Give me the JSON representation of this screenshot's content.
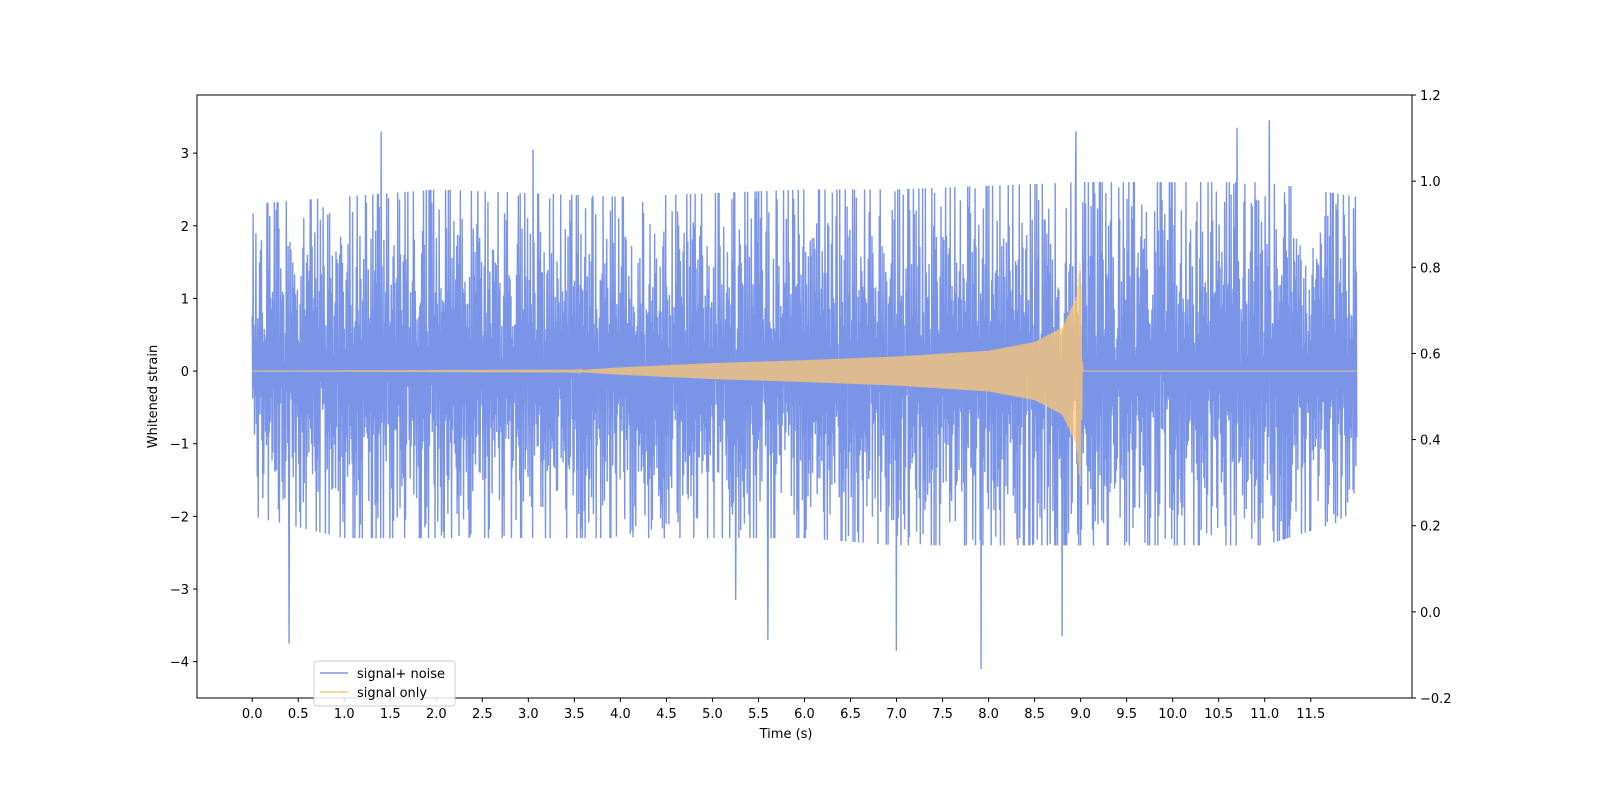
{
  "chart_data": {
    "type": "line",
    "title": "",
    "xlabel": "Time (s)",
    "ylabel": "Whitened strain",
    "xlim": [
      -0.6,
      12.6
    ],
    "ylim": [
      -4.5,
      3.8
    ],
    "y2lim": [
      -0.2,
      1.2
    ],
    "x_ticks": [
      "0.0",
      "0.5",
      "1.0",
      "1.5",
      "2.0",
      "2.5",
      "3.0",
      "3.5",
      "4.0",
      "4.5",
      "5.0",
      "5.5",
      "6.0",
      "6.5",
      "7.0",
      "7.5",
      "8.0",
      "8.5",
      "9.0",
      "9.5",
      "10.0",
      "10.5",
      "11.0",
      "11.5"
    ],
    "y_ticks": [
      "3",
      "2",
      "1",
      "0",
      "−1",
      "−2",
      "−3",
      "−4"
    ],
    "y2_ticks": [
      "1.2",
      "1.0",
      "0.8",
      "0.6",
      "0.4",
      "0.2",
      "0.0",
      "−0.2"
    ],
    "grid": false,
    "legend_position": "lower-left",
    "series": [
      {
        "name": "signal+ noise",
        "color": "#7a95e8",
        "x_range": [
          0.0,
          12.0
        ],
        "noise_sigma": 0.85,
        "envelope_max": [
          [
            0.0,
            2.3
          ],
          [
            1.0,
            2.4
          ],
          [
            2.0,
            2.5
          ],
          [
            3.0,
            2.45
          ],
          [
            4.0,
            2.4
          ],
          [
            5.0,
            2.45
          ],
          [
            6.0,
            2.5
          ],
          [
            7.0,
            2.5
          ],
          [
            8.0,
            2.55
          ],
          [
            9.0,
            2.6
          ],
          [
            10.0,
            2.6
          ],
          [
            11.0,
            2.6
          ],
          [
            12.0,
            2.4
          ]
        ],
        "envelope_min": [
          [
            0.0,
            -2.0
          ],
          [
            1.0,
            -2.3
          ],
          [
            2.0,
            -2.3
          ],
          [
            3.0,
            -2.3
          ],
          [
            4.0,
            -2.3
          ],
          [
            5.0,
            -2.3
          ],
          [
            6.0,
            -2.3
          ],
          [
            7.0,
            -2.4
          ],
          [
            8.0,
            -2.4
          ],
          [
            9.0,
            -2.4
          ],
          [
            10.0,
            -2.4
          ],
          [
            11.0,
            -2.4
          ],
          [
            12.0,
            -2.0
          ]
        ],
        "spikes": [
          {
            "x": 0.4,
            "y": -3.75
          },
          {
            "x": 1.4,
            "y": 3.3
          },
          {
            "x": 3.05,
            "y": 3.05
          },
          {
            "x": 5.25,
            "y": -3.15
          },
          {
            "x": 5.6,
            "y": -3.7
          },
          {
            "x": 7.0,
            "y": -3.85
          },
          {
            "x": 7.92,
            "y": -4.1
          },
          {
            "x": 8.8,
            "y": -3.65
          },
          {
            "x": 8.95,
            "y": 3.3
          },
          {
            "x": 10.7,
            "y": 3.35
          },
          {
            "x": 11.05,
            "y": 3.45
          }
        ]
      },
      {
        "name": "signal only",
        "color": "#ffc870",
        "description_points": [
          [
            0.0,
            0.0
          ],
          [
            3.5,
            0.01
          ],
          [
            4.0,
            0.05
          ],
          [
            5.0,
            0.11
          ],
          [
            6.0,
            0.15
          ],
          [
            7.0,
            0.2
          ],
          [
            8.0,
            0.28
          ],
          [
            8.5,
            0.4
          ],
          [
            8.8,
            0.6
          ],
          [
            8.95,
            1.0
          ],
          [
            9.0,
            1.6
          ],
          [
            9.02,
            0.0
          ],
          [
            12.0,
            0.0
          ]
        ],
        "envelope": [
          [
            0.0,
            0.0
          ],
          [
            3.5,
            0.01
          ],
          [
            4.0,
            0.05
          ],
          [
            5.0,
            0.11
          ],
          [
            6.0,
            0.15
          ],
          [
            7.0,
            0.2
          ],
          [
            8.0,
            0.28
          ],
          [
            8.5,
            0.4
          ],
          [
            8.8,
            0.6
          ],
          [
            8.95,
            1.0
          ],
          [
            9.0,
            1.6
          ],
          [
            9.02,
            0.0
          ],
          [
            12.0,
            0.0
          ]
        ]
      }
    ]
  }
}
